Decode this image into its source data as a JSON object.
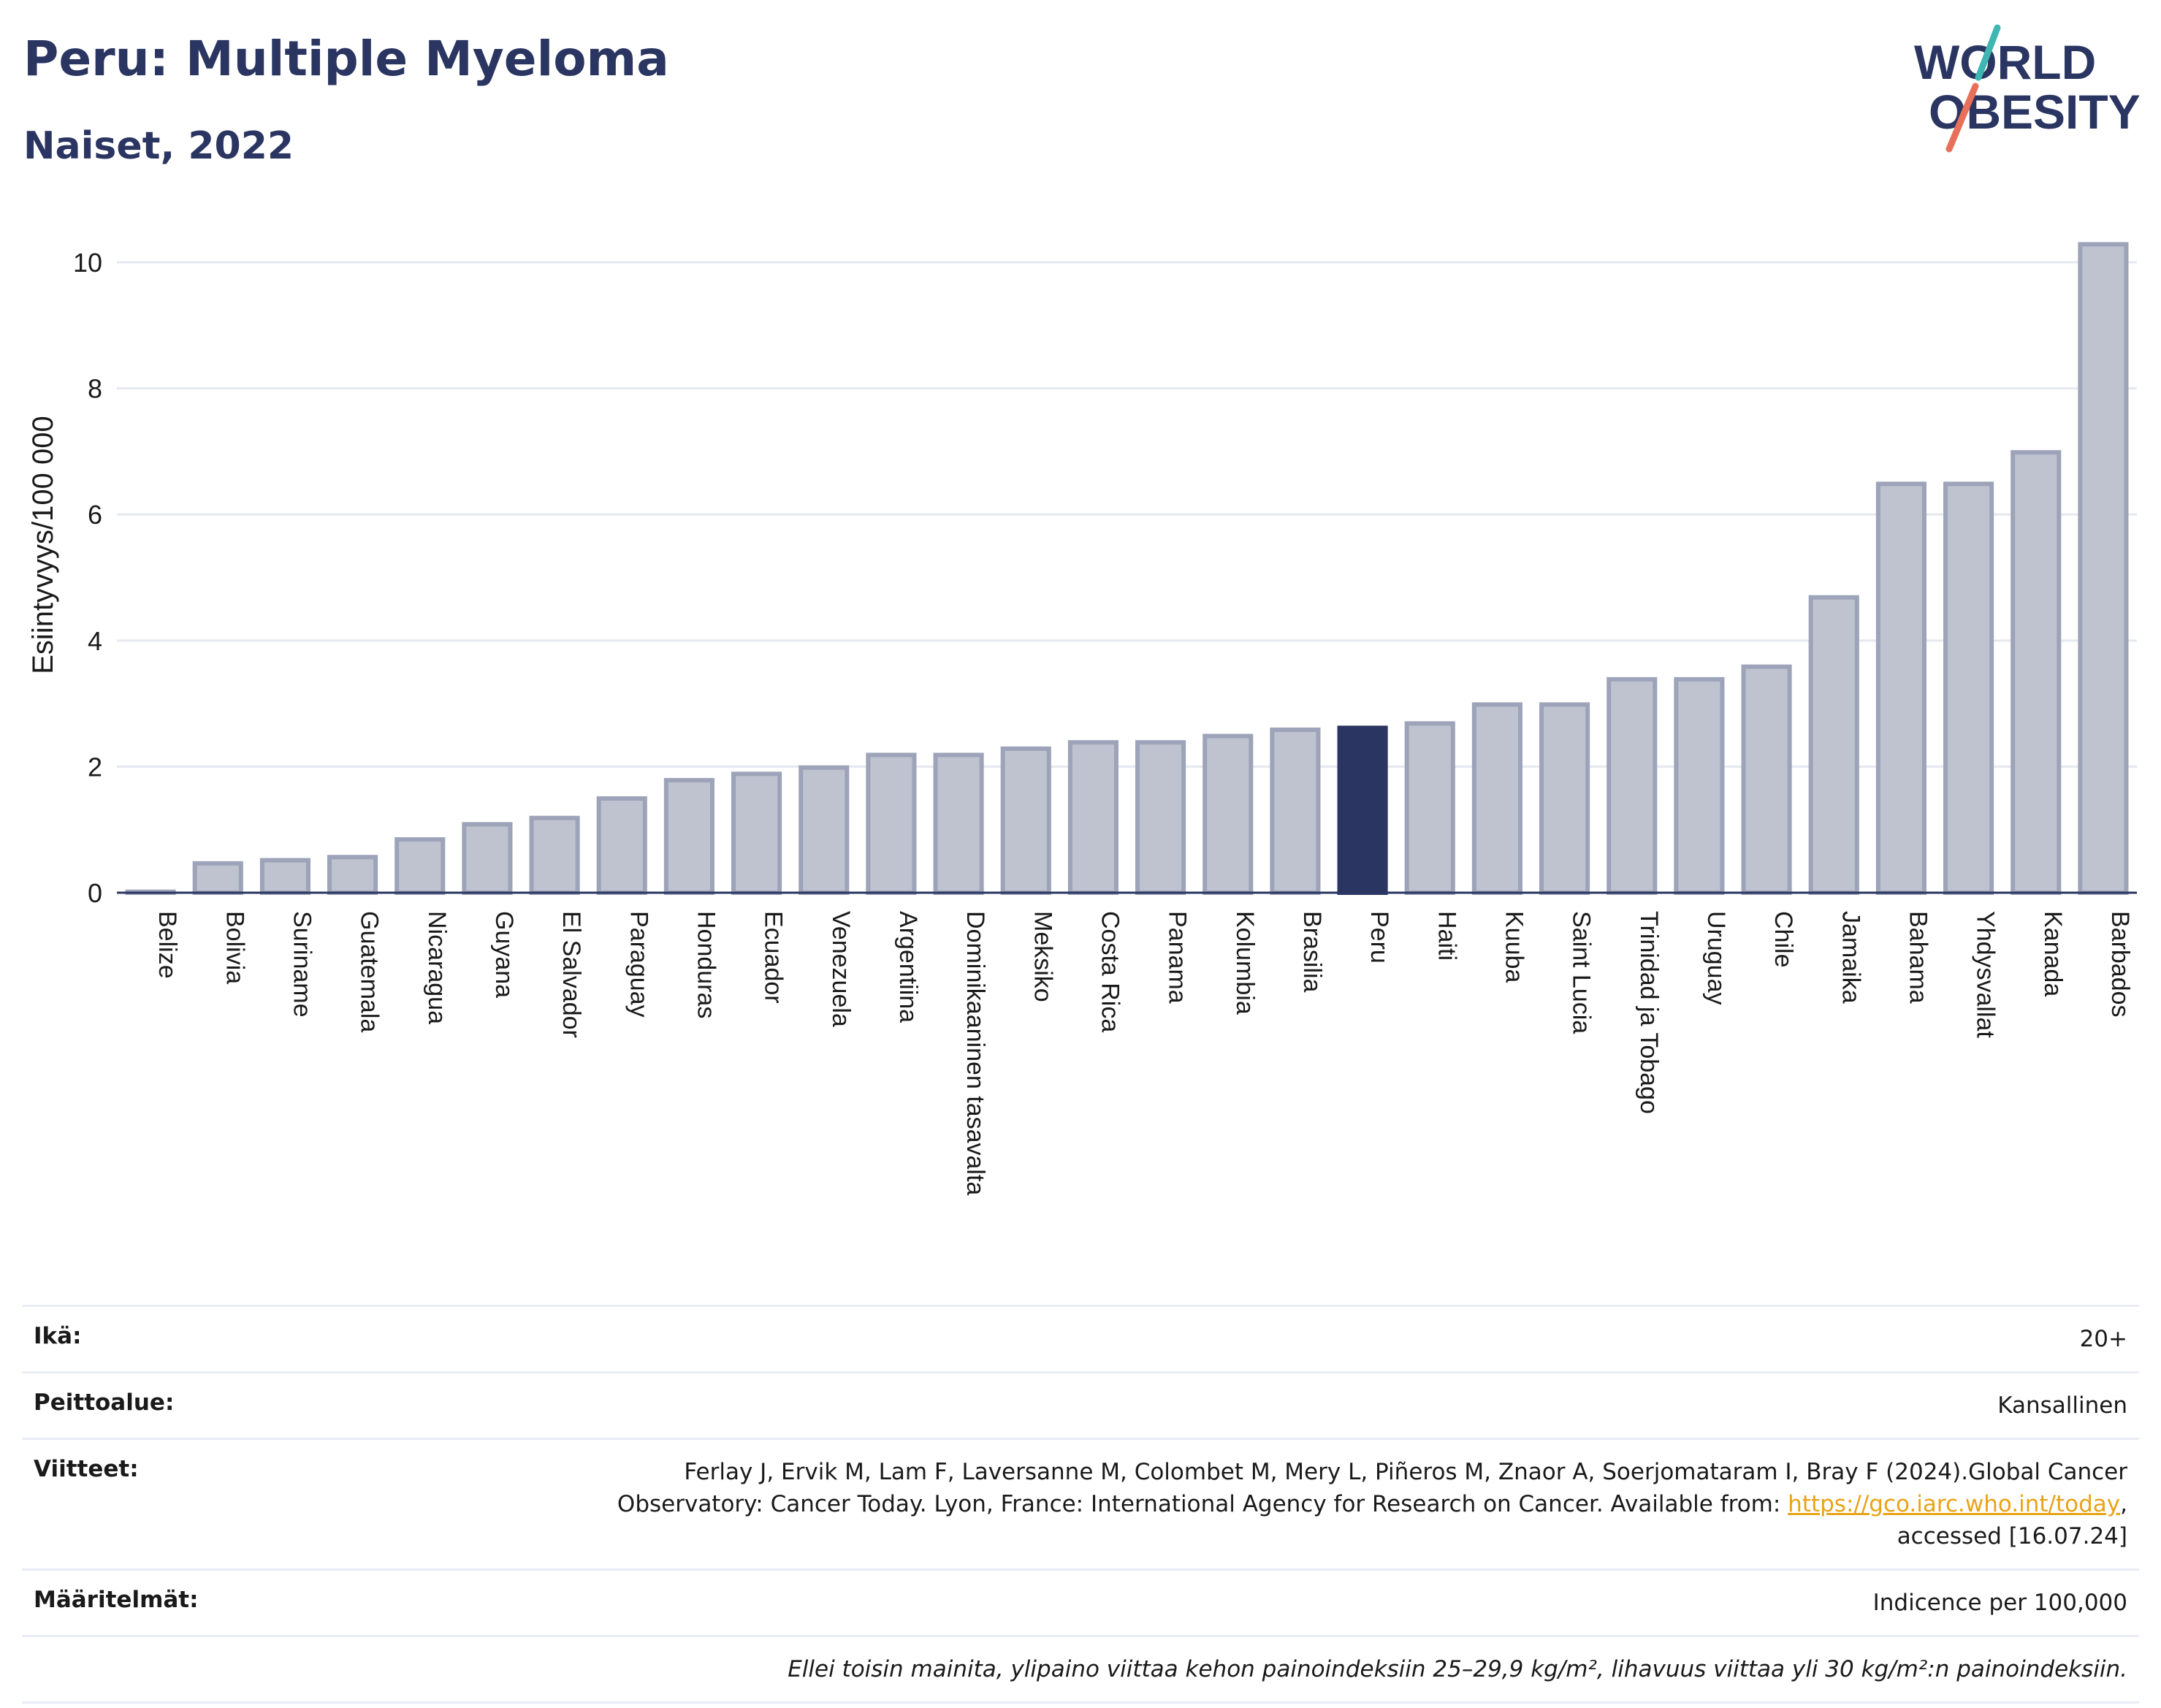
{
  "title": "Peru: Multiple Myeloma",
  "subtitle": "Naiset, 2022",
  "logo": {
    "line1": "WORLD",
    "line2": "OBESITY"
  },
  "chart_data": {
    "type": "bar",
    "ylabel": "Esiintyvyys/100 000",
    "xlabel": "",
    "ylim": [
      0,
      10.8
    ],
    "yticks": [
      0,
      2,
      4,
      6,
      8,
      10
    ],
    "grid": true,
    "highlight": "Peru",
    "colors": {
      "bar": "#bfc3d0",
      "bar_border": "#9da3b8",
      "highlight": "#2a3561"
    },
    "categories": [
      "Belize",
      "Bolivia",
      "Suriname",
      "Guatemala",
      "Nicaragua",
      "Guyana",
      "El Salvador",
      "Paraguay",
      "Honduras",
      "Ecuador",
      "Venezuela",
      "Argentiina",
      "Dominikaaninen tasavalta",
      "Meksiko",
      "Costa Rica",
      "Panama",
      "Kolumbia",
      "Brasilia",
      "Peru",
      "Haiti",
      "Kuuba",
      "Saint Lucia",
      "Trinidad ja Tobago",
      "Uruguay",
      "Chile",
      "Jamaika",
      "Bahama",
      "Yhdysvallat",
      "Kanada",
      "Barbados"
    ],
    "values": [
      0.05,
      0.5,
      0.55,
      0.6,
      0.88,
      1.12,
      1.22,
      1.53,
      1.82,
      1.92,
      2.02,
      2.22,
      2.22,
      2.32,
      2.42,
      2.42,
      2.52,
      2.62,
      2.65,
      2.72,
      3.02,
      3.02,
      3.42,
      3.42,
      3.62,
      4.72,
      6.52,
      6.52,
      7.02,
      10.32
    ]
  },
  "meta": {
    "age_label": "Ikä:",
    "age_value": "20+",
    "coverage_label": "Peittoalue:",
    "coverage_value": "Kansallinen",
    "refs_label": "Viitteet:",
    "refs_line1": "Ferlay J, Ervik M, Lam F, Laversanne M, Colombet M, Mery L, Piñeros M, Znaor A, Soerjomataram I, Bray F (2024).Global Cancer",
    "refs_line2": "Observatory: Cancer Today. Lyon, France: International Agency for Research on Cancer. Available from: ",
    "refs_link": "https://gco.iarc.who.int/today",
    "refs_line2_end": ",",
    "refs_line3": "accessed [16.07.24]",
    "def_label": "Määritelmät:",
    "def_value": "Indicence per 100,000",
    "note": "Ellei toisin mainita, ylipaino viittaa kehon painoindeksiin 25–29,9 kg/m², lihavuus viittaa yli 30 kg/m²:n painoindeksiin."
  }
}
